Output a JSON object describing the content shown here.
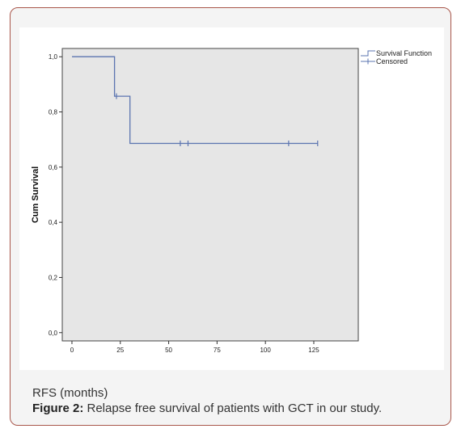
{
  "caption": {
    "xlabel_text": "RFS (months)",
    "figure_label": "Figure 2:",
    "figure_text": " Relapse free survival of patients with GCT in our study."
  },
  "colors": {
    "frame_border": "#a9574b",
    "frame_bg": "#f4f4f4",
    "plot_bg": "#e6e6e6",
    "series": "#5b74b0"
  },
  "chart_data": {
    "type": "line",
    "subtype": "kaplan-meier",
    "ylabel": "Cum Survival",
    "xlabel": "",
    "x_ticks": [
      "0",
      "25",
      "50",
      "75",
      "100",
      "125"
    ],
    "y_ticks": [
      "0,0",
      "0,2",
      "0,4",
      "0,6",
      "0,8",
      "1,0"
    ],
    "xlim": [
      -5,
      148
    ],
    "ylim": [
      -0.03,
      1.03
    ],
    "legend": [
      "Survival Function",
      "Censored"
    ],
    "legend_position": "top-right",
    "series": [
      {
        "name": "Survival Function",
        "x": [
          0,
          22,
          22,
          30,
          30,
          127
        ],
        "y": [
          1.0,
          1.0,
          0.857,
          0.857,
          0.686,
          0.686
        ]
      },
      {
        "name": "Censored",
        "x": [
          23,
          56,
          60,
          112,
          127
        ],
        "y": [
          0.857,
          0.686,
          0.686,
          0.686,
          0.686
        ]
      }
    ]
  }
}
